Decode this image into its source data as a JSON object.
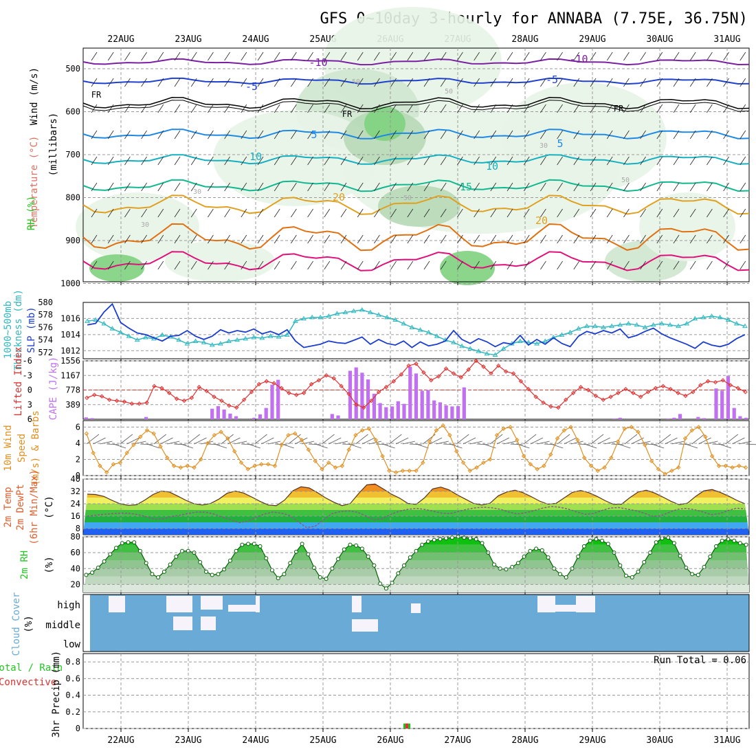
{
  "title": "GFS 0~10day 3-hourly for ANNABA (7.75E, 36.75N)",
  "dates": [
    "22AUG",
    "23AUG",
    "24AUG",
    "25AUG",
    "26AUG",
    "27AUG",
    "28AUG",
    "29AUG",
    "30AUG",
    "31AUG"
  ],
  "colors": {
    "temp_cold": "#7b1fa2",
    "temp_m5": "#1e40d0",
    "temp_fr": "#000000",
    "temp_p5": "#1e88e5",
    "temp_10": "#14b0c0",
    "temp_15": "#10b890",
    "temp_20": "#e0a020",
    "temp_25": "#e07010",
    "temp_30": "#e0107a",
    "slp": "#1a3ccf",
    "thickness": "#30b8c0",
    "lifted": "#e03030",
    "cape": "#c070f0",
    "wind": "#e09020",
    "cloud": "#6aaad6",
    "rh_green": "#20c820",
    "run_total_text": "#000000"
  },
  "panels": {
    "upper": {
      "ylabels": [
        "Wind (m/s)",
        "Temperature (°C)",
        "RH (%)",
        "(millibars)"
      ],
      "yticks": [
        "500",
        "600",
        "700",
        "800",
        "900",
        "1000"
      ],
      "contour_labels": [
        "-10",
        "-10",
        "-5",
        "-5",
        "FR",
        "FR",
        "FR",
        "5",
        "5",
        "10",
        "10",
        "15",
        "20",
        "20",
        "30",
        "30",
        "30",
        "50",
        "50",
        "50",
        "50"
      ]
    },
    "slp": {
      "ylabels": [
        "1000~500mb",
        "Thickness (dm)",
        "SLP (mb)"
      ],
      "yticks_left": [
        "580",
        "578",
        "576",
        "574",
        "572"
      ],
      "yticks_right": [
        "1016",
        "1014",
        "1012"
      ]
    },
    "cape": {
      "ylabels": [
        "Lifted Index",
        "CAPE (J/kg)"
      ],
      "yticks_left": [
        "-6",
        "-3",
        "0",
        "3",
        "6"
      ],
      "yticks_right": [
        "1556",
        "1167",
        "778",
        "389"
      ]
    },
    "wind": {
      "ylabels": [
        "10m Wind",
        "Speed",
        "(m/s) & Barbs"
      ],
      "yticks": [
        "6",
        "4",
        "2",
        "0"
      ]
    },
    "temp": {
      "ylabels": [
        "2m Temp",
        "2m DewPt",
        "(6hr Min/Max)",
        "(°C)"
      ],
      "yticks": [
        "40",
        "32",
        "24",
        "16",
        "8"
      ]
    },
    "rh": {
      "ylabels": [
        "2m RH",
        "(%)"
      ],
      "yticks": [
        "80",
        "60",
        "40",
        "20"
      ]
    },
    "cloud": {
      "ylabels": [
        "Cloud Cover",
        "(%)"
      ],
      "levels": [
        "high",
        "middle",
        "low"
      ]
    },
    "precip": {
      "ylabels": [
        "Total / Rain",
        "Convective",
        "3hr Precip (mm)"
      ],
      "yticks": [
        "0.8",
        "0.6",
        "0.4",
        "0.2",
        "0"
      ],
      "run_total": "Run Total = 0.06"
    }
  },
  "chart_data": [
    {
      "type": "line",
      "title": "1000~500mb Thickness (dm) / SLP (mb)",
      "series": [
        {
          "name": "SLP (mb)",
          "values": [
            1015.2,
            1015.4,
            1016.8,
            1017.8,
            1015.5,
            1014.8,
            1014.2,
            1014.0,
            1013.6,
            1013.2,
            1013.8,
            1013.9,
            1014.5,
            1013.8,
            1013.4,
            1013.8,
            1014.6,
            1014.2,
            1014.5,
            1014.3,
            1014.7,
            1014.1,
            1014.4,
            1014.0,
            1014.6,
            1013.2,
            1012.4,
            1012.6,
            1012.8,
            1013.2,
            1013.0,
            1012.9,
            1013.3,
            1013.7,
            1012.8,
            1013.4,
            1012.9,
            1012.7,
            1013.2,
            1012.4,
            1013.1,
            1012.6,
            1012.8,
            1013.2,
            1014.5,
            1013.4,
            1012.9,
            1013.5,
            1013.1,
            1012.5,
            1013.0,
            1012.8,
            1013.9,
            1012.7,
            1013.4,
            1012.8,
            1013.6,
            1012.9,
            1012.5,
            1013.8,
            1014.4,
            1014.1,
            1014.5,
            1014.2,
            1014.7,
            1013.6,
            1013.9,
            1014.4,
            1014.8,
            1014.1,
            1013.6,
            1013.2,
            1012.8,
            1012.3,
            1013.1,
            1012.7,
            1012.5,
            1012.8,
            1013.5,
            1014.0
          ]
        },
        {
          "name": "1000~500mb Thickness (dm)",
          "values": [
            577.0,
            577.2,
            576.6,
            575.8,
            575.2,
            574.6,
            574.0,
            574.4,
            574.2,
            574.8,
            574.5,
            574.0,
            573.4,
            573.8,
            573.6,
            573.2,
            573.4,
            573.8,
            574.0,
            574.2,
            574.4,
            574.3,
            574.6,
            574.5,
            574.8,
            577.0,
            577.4,
            577.6,
            577.6,
            577.8,
            578.2,
            578.4,
            578.6,
            578.8,
            578.4,
            578.0,
            577.6,
            577.2,
            576.6,
            576.0,
            575.6,
            575.2,
            574.6,
            574.0,
            573.6,
            573.0,
            572.6,
            572.2,
            571.8,
            571.6,
            572.6,
            573.4,
            573.8,
            573.6,
            573.4,
            573.8,
            574.4,
            574.8,
            575.2,
            575.8,
            576.2,
            576.2,
            576.0,
            576.2,
            576.4,
            576.6,
            576.4,
            576.0,
            576.4,
            576.6,
            576.4,
            576.2,
            576.6,
            577.4,
            577.6,
            577.8,
            577.6,
            577.2,
            576.6,
            576.2
          ]
        }
      ],
      "ylim_left": [
        571,
        580
      ],
      "ylim_right": [
        1011,
        1018
      ]
    },
    {
      "type": "bar",
      "title": "Lifted Index / CAPE (J/kg)",
      "series": [
        {
          "name": "CAPE (J/kg)",
          "values": [
            50,
            30,
            0,
            0,
            0,
            0,
            0,
            0,
            0,
            0,
            60,
            0,
            0,
            0,
            0,
            0,
            0,
            0,
            0,
            0,
            0,
            280,
            350,
            260,
            150,
            80,
            0,
            0,
            40,
            130,
            300,
            920,
            1050,
            0,
            0,
            0,
            0,
            0,
            0,
            0,
            0,
            140,
            100,
            0,
            1290,
            1380,
            1240,
            1060,
            680,
            430,
            320,
            340,
            480,
            410,
            1400,
            1220,
            760,
            780,
            500,
            450,
            370,
            340,
            350,
            850,
            0,
            0,
            0,
            0,
            0,
            0,
            0,
            0,
            0,
            0,
            0,
            0,
            0,
            0,
            0,
            0,
            0,
            0,
            0,
            0,
            0,
            0,
            0,
            0,
            20,
            40,
            0,
            0,
            0,
            0,
            0,
            0,
            0,
            20,
            40,
            140,
            0,
            0,
            60,
            30,
            0,
            820,
            760,
            1150,
            300,
            80,
            40
          ]
        },
        {
          "name": "Lifted Index",
          "values": [
            1.6,
            1.0,
            1.3,
            2.0,
            2.2,
            2.4,
            2.8,
            2.8,
            2.6,
            -0.8,
            -0.4,
            0.6,
            1.8,
            2.2,
            1.6,
            -0.6,
            0.2,
            1.4,
            2.2,
            3.2,
            3.6,
            2.0,
            0.4,
            -1.2,
            -1.8,
            -1.4,
            -0.4,
            0.6,
            1.0,
            0.6,
            -1.2,
            -2.0,
            -3.0,
            -2.4,
            -0.8,
            0.8,
            3.0,
            3.6,
            2.2,
            0.4,
            -0.6,
            -1.8,
            -3.2,
            -5.0,
            -5.4,
            -3.6,
            -2.0,
            -2.8,
            -4.4,
            -3.4,
            -2.6,
            -4.2,
            -6.0,
            -4.8,
            -3.4,
            -5.0,
            -3.8,
            -3.4,
            -1.8,
            -0.2,
            1.4,
            2.6,
            3.4,
            3.6,
            2.0,
            0.6,
            -0.6,
            0.0,
            1.2,
            2.0,
            1.4,
            0.6,
            -0.2,
            0.6,
            1.4,
            0.4,
            -0.4,
            -0.8,
            -0.2,
            0.6,
            1.2,
            0.4,
            -1.0,
            -1.8,
            -1.6,
            -2.0,
            -1.0,
            -0.4,
            0.4
          ]
        }
      ],
      "ylim_left": [
        6,
        -6
      ],
      "ylim_right": [
        0,
        1556
      ]
    },
    {
      "type": "line",
      "title": "10m Wind Speed (m/s) & Barbs",
      "series": [
        {
          "name": "Speed (m/s)",
          "values": [
            5.2,
            2.8,
            1.2,
            0.4,
            1.4,
            1.6,
            2.8,
            3.8,
            4.8,
            5.6,
            5.2,
            3.6,
            2.2,
            1.2,
            1.0,
            1.2,
            1.0,
            2.0,
            4.0,
            5.0,
            5.4,
            4.6,
            3.0,
            1.6,
            0.8,
            1.2,
            1.4,
            1.4,
            1.2,
            3.8,
            5.0,
            5.2,
            4.4,
            3.2,
            1.8,
            0.8,
            1.6,
            1.0,
            1.2,
            3.2,
            5.0,
            5.6,
            5.8,
            4.4,
            2.4,
            0.6,
            0.4,
            0.6,
            0.6,
            0.6,
            1.6,
            4.2,
            5.6,
            6.2,
            5.0,
            3.0,
            1.6,
            0.6,
            1.0,
            1.6,
            2.0,
            5.0,
            5.8,
            6.0,
            4.4,
            2.4,
            1.4,
            0.8,
            1.2,
            2.6,
            4.6,
            5.6,
            6.0,
            4.4,
            2.2,
            1.2,
            0.6,
            1.0,
            2.2,
            4.2,
            5.8,
            6.0,
            5.4,
            3.8,
            1.8,
            0.8,
            0.2,
            0.6,
            1.0,
            4.6,
            5.6,
            6.0,
            4.8,
            2.4,
            1.2,
            1.2,
            1.0,
            1.2,
            1.0
          ]
        }
      ],
      "ylim": [
        0,
        6.8
      ]
    },
    {
      "type": "area",
      "title": "2m Temp / 2m DewPt (6hr Min/Max) (°C)",
      "series": [
        {
          "name": "2m Temp",
          "values": [
            30.2,
            30.0,
            28.8,
            26.2,
            24.0,
            23.0,
            23.4,
            26.4,
            30.0,
            32.2,
            31.6,
            29.0,
            26.2,
            24.0,
            23.2,
            24.2,
            27.0,
            30.8,
            32.2,
            31.0,
            28.4,
            25.6,
            23.2,
            22.8,
            26.4,
            32.4,
            35.0,
            34.2,
            31.2,
            27.8,
            25.0,
            22.8,
            24.2,
            30.6,
            36.2,
            36.8,
            33.6,
            30.2,
            27.6,
            24.2,
            23.6,
            27.8,
            33.6,
            34.8,
            33.0,
            29.8,
            27.0,
            24.2,
            23.2,
            24.4,
            29.2,
            31.6,
            32.8,
            31.2,
            28.6,
            25.8,
            23.8,
            24.2,
            27.8,
            31.4,
            32.6,
            31.2,
            28.8,
            26.0,
            23.6,
            23.8,
            28.0,
            31.6,
            32.8,
            31.0,
            28.4,
            25.6,
            23.4,
            24.4,
            28.8,
            32.4,
            33.2,
            31.4,
            29.0,
            26.2,
            24.0
          ]
        },
        {
          "name": "2m DewPt",
          "values": [
            16.0,
            16.6,
            17.2,
            17.6,
            18.0,
            17.8,
            17.0,
            15.6,
            14.0,
            14.2,
            15.8,
            16.6,
            17.8,
            18.6,
            18.6,
            17.4,
            15.4,
            13.6,
            11.8,
            12.6,
            15.2,
            17.4,
            18.6,
            18.0,
            16.4,
            12.4,
            8.6,
            9.4,
            13.6,
            17.6,
            19.0,
            19.4,
            18.6,
            16.2,
            13.6,
            14.4,
            17.2,
            19.2,
            20.4,
            21.0,
            20.4,
            19.2,
            18.0,
            17.6,
            19.0,
            20.4,
            21.4,
            21.8,
            21.4,
            20.4,
            18.6,
            17.4,
            18.2,
            19.6,
            21.2,
            22.2,
            21.8,
            20.6,
            18.8,
            17.2,
            17.6,
            19.6,
            21.2,
            21.6,
            20.6,
            19.6,
            18.0,
            16.0,
            16.2,
            18.4,
            20.4,
            21.0,
            20.2,
            18.8,
            17.0,
            17.6,
            19.6,
            21.2,
            20.6
          ]
        }
      ],
      "ylim": [
        4,
        40
      ]
    },
    {
      "type": "area",
      "title": "2m RH (%)",
      "series": [
        {
          "name": "2m RH",
          "values": [
            32,
            35,
            41,
            49,
            58,
            66,
            72,
            73,
            73,
            62,
            47,
            33,
            29,
            36,
            45,
            55,
            62,
            62,
            60,
            48,
            36,
            32,
            33,
            39,
            50,
            62,
            70,
            71,
            71,
            68,
            53,
            38,
            28,
            33,
            47,
            61,
            71,
            58,
            41,
            29,
            27,
            40,
            52,
            64,
            70,
            69,
            65,
            55,
            44,
            21,
            15,
            22,
            34,
            44,
            54,
            62,
            70,
            74,
            76,
            77,
            78,
            79,
            80,
            79,
            78,
            77,
            72,
            60,
            45,
            40,
            39,
            42,
            47,
            55,
            62,
            65,
            63,
            54,
            40,
            33,
            29,
            40,
            55,
            68,
            75,
            77,
            75,
            71,
            60,
            44,
            31,
            29,
            36,
            48,
            60,
            73,
            78,
            79,
            72,
            56,
            41,
            33,
            32,
            42,
            55,
            68,
            75,
            77,
            75,
            72,
            70
          ]
        }
      ],
      "ylim": [
        10,
        80
      ]
    },
    {
      "type": "bar",
      "title": "3hr Precip (mm)",
      "series": [
        {
          "name": "Total / Rain",
          "values": [
            0.06
          ]
        },
        {
          "name": "Convective",
          "values": [
            0.06
          ]
        }
      ],
      "categories": [
        "26AUG"
      ],
      "ylim": [
        0,
        0.9
      ],
      "annotations": [
        "Run Total = 0.06"
      ]
    }
  ]
}
